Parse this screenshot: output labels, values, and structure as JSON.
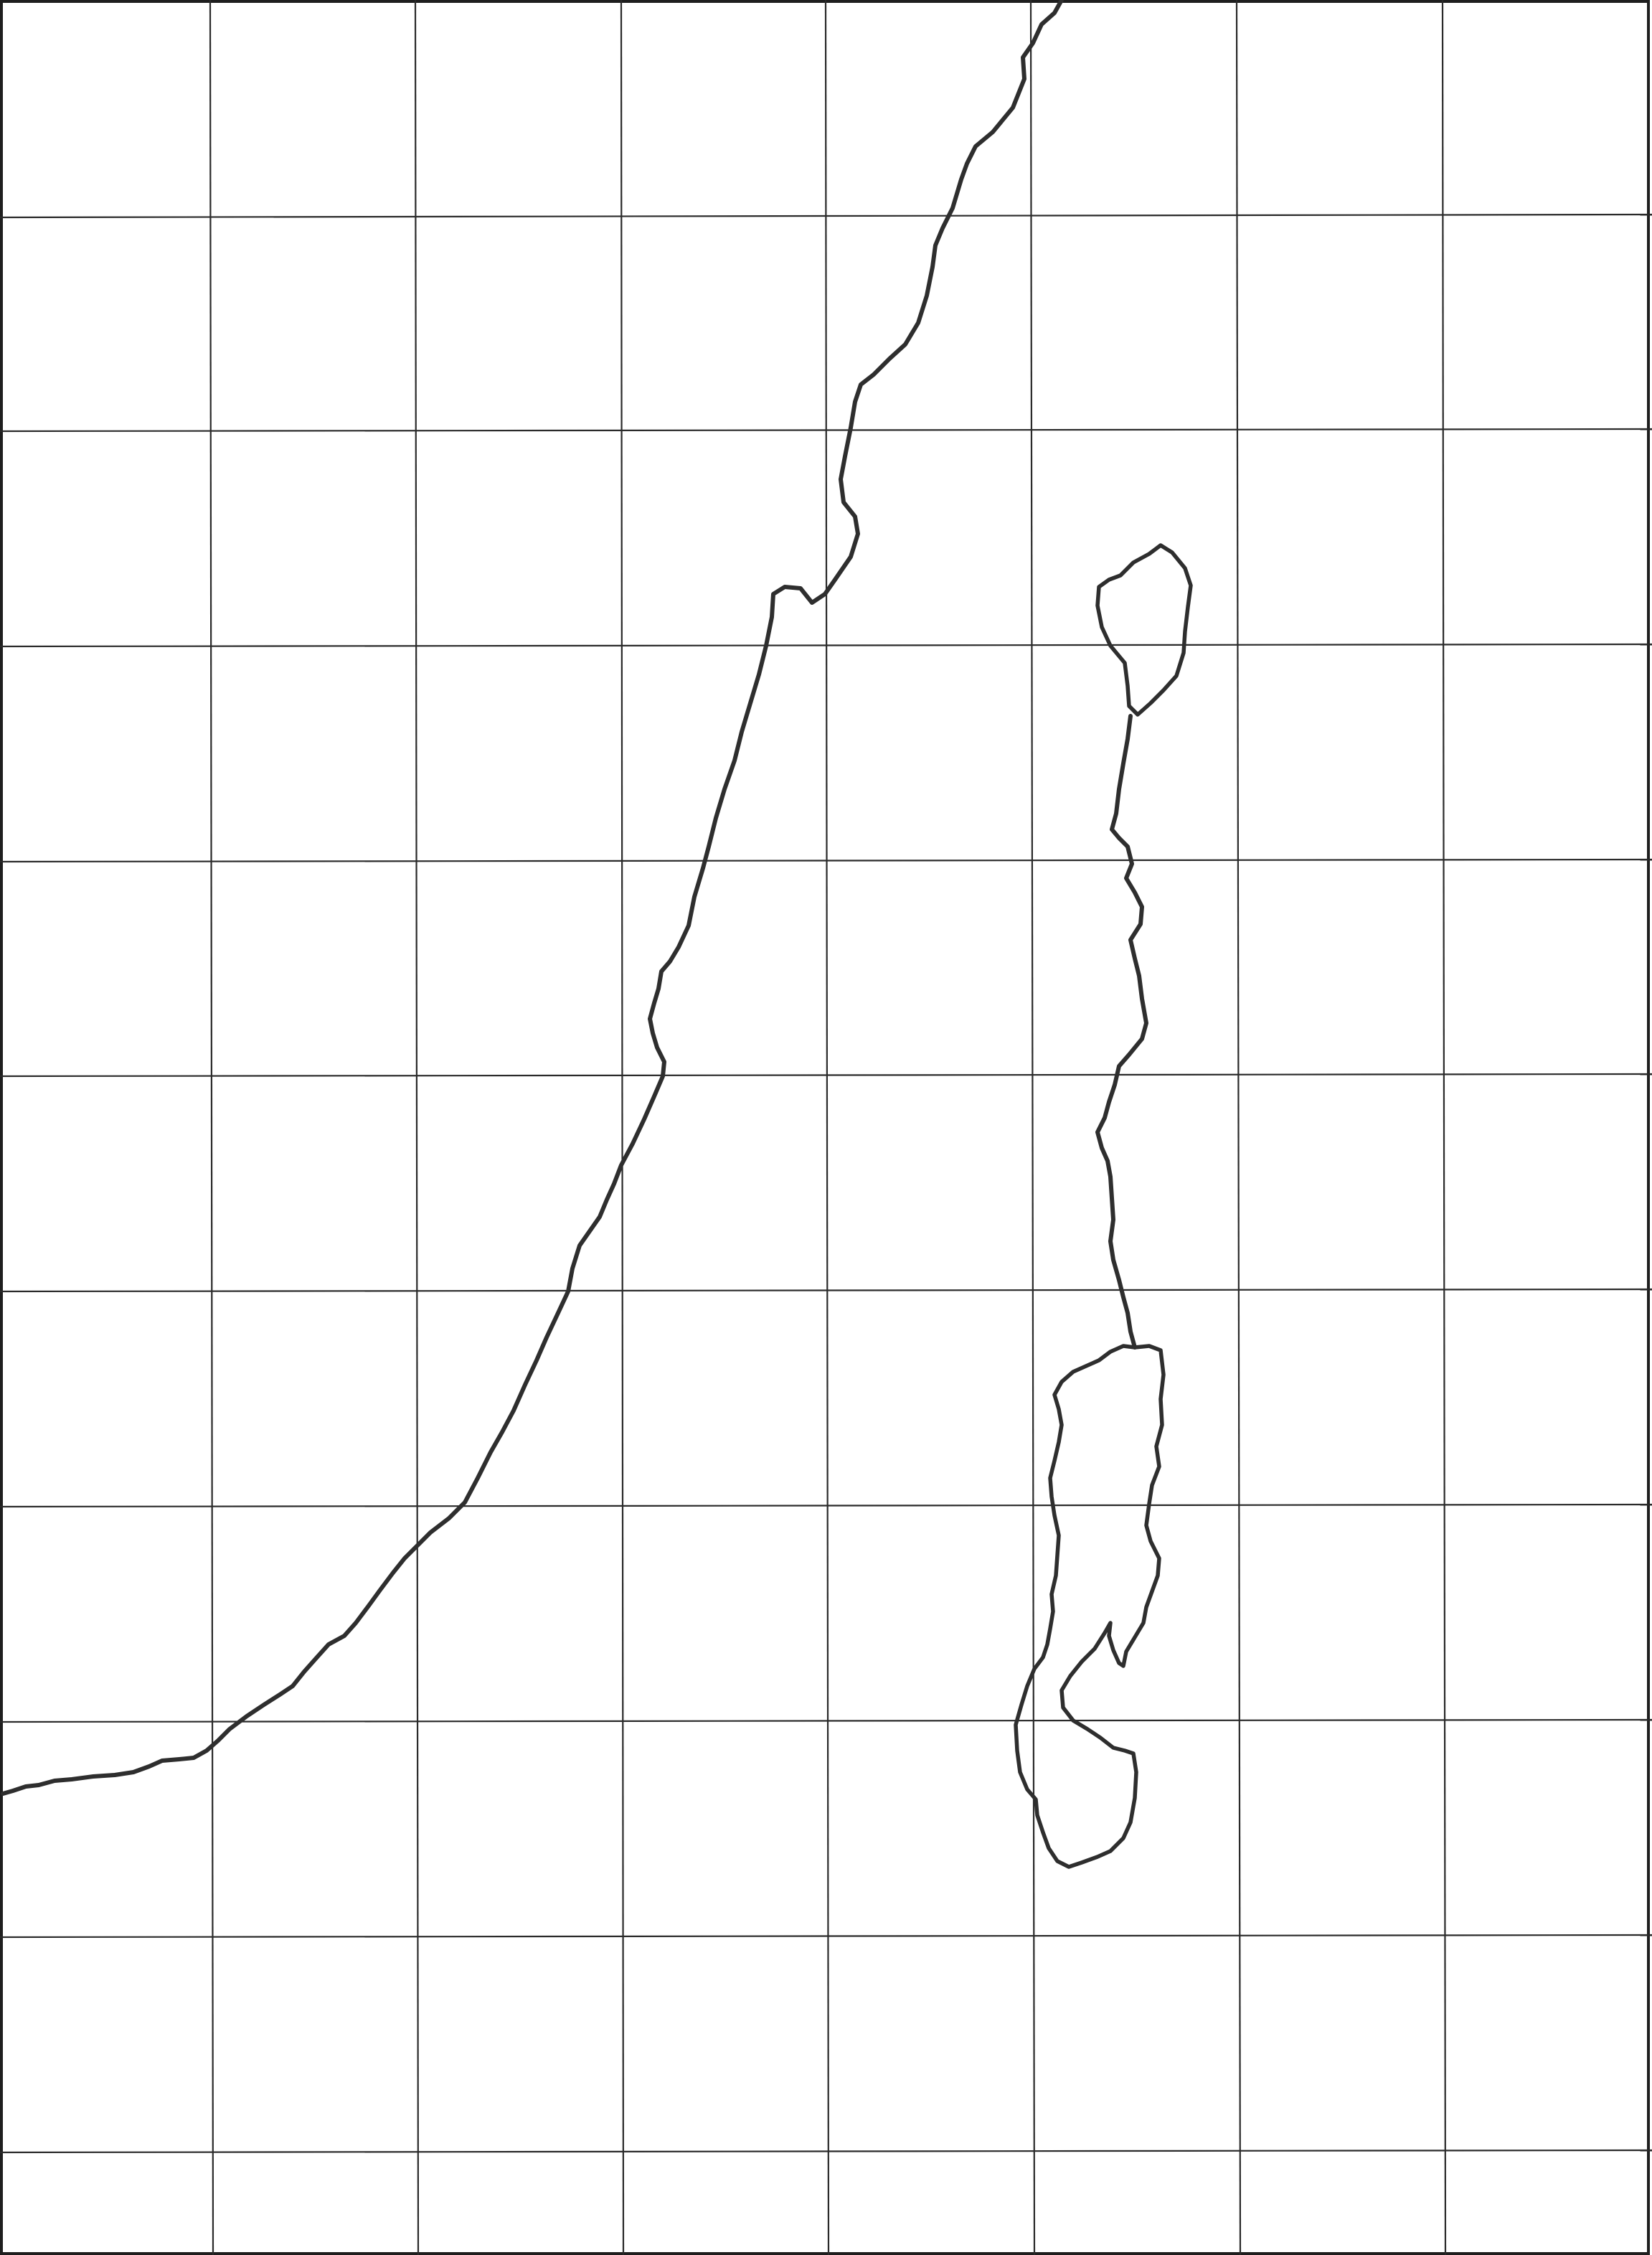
{
  "map": {
    "type": "blank outline map with grid",
    "grid": {
      "columns": 8,
      "rows": 10.5,
      "line_color": "#2a2a2a"
    },
    "features": [
      {
        "name": "mediterranean-coastline",
        "kind": "coastline"
      },
      {
        "name": "sea-of-galilee-outline",
        "kind": "lake"
      },
      {
        "name": "jordan-river-line",
        "kind": "river"
      },
      {
        "name": "dead-sea-outline",
        "kind": "lake"
      }
    ],
    "line_color": "#2e2e2e",
    "background": "#ffffff"
  }
}
